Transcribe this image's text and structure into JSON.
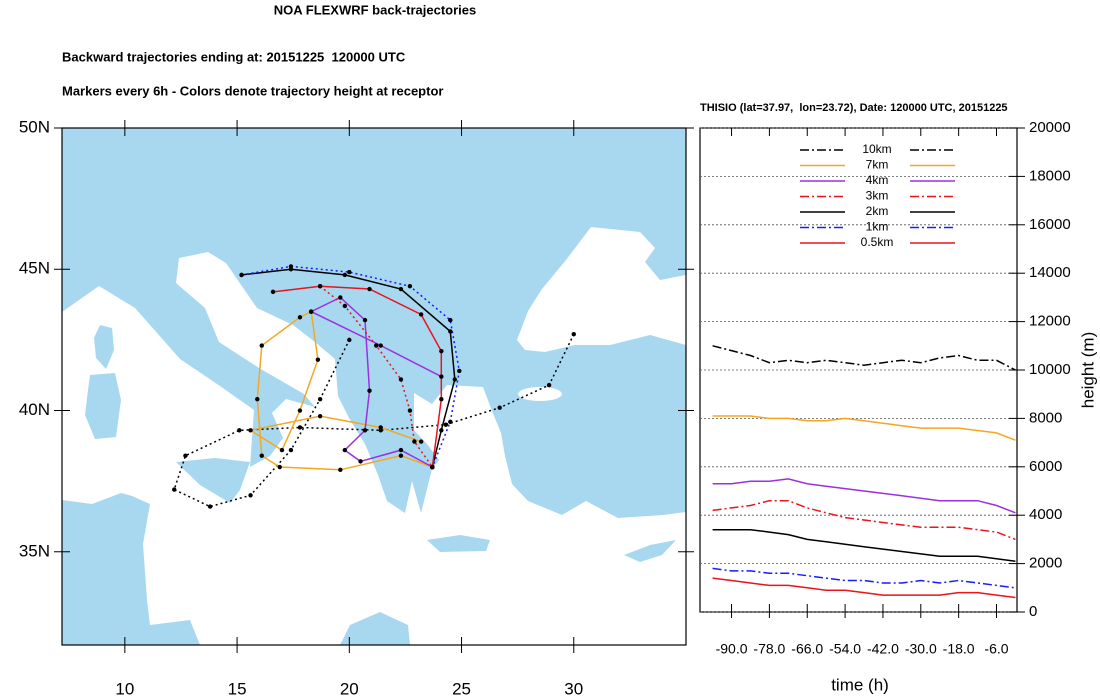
{
  "chart_data": [
    {
      "type": "map",
      "title": "NOA FLEXWRF back-trajectories",
      "subtitle": "Backward trajectories ending at: 20151225  120000 UTC",
      "annotation": "Markers every 6h - Colors denote trajectory height at receptor",
      "xlim": [
        7.2,
        35
      ],
      "ylim": [
        31.7,
        50
      ],
      "xticks": [
        10,
        15,
        20,
        25,
        30
      ],
      "yticks": [
        {
          "value": 35,
          "label": "35N"
        },
        {
          "value": 40,
          "label": "40N"
        },
        {
          "value": 45,
          "label": "45N"
        },
        {
          "value": 50,
          "label": "50N"
        }
      ],
      "land_color": "#a8d8f0",
      "sea_color": "#ffffff",
      "marker_color": "#000000",
      "series": [
        {
          "color": "#000000",
          "dash": "dotted",
          "x": [
            30.0,
            28.9,
            26.7,
            24.3,
            21.4,
            17.8,
            15.1,
            12.7,
            12.2,
            13.8,
            15.6,
            17.4,
            18.7,
            20.0
          ],
          "y": [
            42.7,
            40.9,
            40.1,
            39.5,
            39.3,
            39.4,
            39.3,
            38.4,
            37.2,
            36.6,
            37.0,
            38.6,
            40.4,
            42.5
          ]
        },
        {
          "color": "#f5a623",
          "dash": "solid",
          "x": [
            23.7,
            22.3,
            19.6,
            16.9,
            16.1,
            15.9,
            16.1,
            17.8,
            18.3,
            18.6,
            17.8,
            17.0,
            15.6,
            18.7,
            21.4,
            23.2
          ],
          "y": [
            38.0,
            38.4,
            37.9,
            38.0,
            38.4,
            40.4,
            42.3,
            43.3,
            43.5,
            41.8,
            40.0,
            38.6,
            39.3,
            39.8,
            39.4,
            38.9
          ]
        },
        {
          "color": "#9b30e0",
          "dash": "solid",
          "x": [
            24.1,
            21.4,
            18.3,
            19.6,
            20.7,
            20.9,
            20.7,
            19.8,
            20.5,
            22.3,
            23.7
          ],
          "y": [
            41.2,
            42.3,
            43.5,
            44.0,
            43.2,
            40.7,
            39.3,
            38.6,
            38.2,
            38.6,
            38.0
          ]
        },
        {
          "color": "#e8141e",
          "dash": "dotted",
          "x": [
            18.7,
            19.8,
            21.2,
            22.3,
            22.7,
            22.9,
            23.7
          ],
          "y": [
            44.4,
            43.7,
            42.3,
            41.1,
            40.0,
            38.9,
            38.0
          ]
        },
        {
          "color": "#000000",
          "dash": "solid",
          "x": [
            15.2,
            17.4,
            19.8,
            22.3,
            24.5,
            24.7,
            24.1,
            23.7
          ],
          "y": [
            44.8,
            45.0,
            44.8,
            44.3,
            42.8,
            41.1,
            39.3,
            38.0
          ]
        },
        {
          "color": "#1a1aff",
          "dash": "dotted",
          "x": [
            15.2,
            17.4,
            20.0,
            22.7,
            24.5,
            24.9,
            24.5,
            23.7
          ],
          "y": [
            44.8,
            45.1,
            44.9,
            44.4,
            43.2,
            41.4,
            39.6,
            38.0
          ]
        },
        {
          "color": "#e8141e",
          "dash": "solid",
          "x": [
            16.6,
            18.7,
            20.9,
            23.2,
            24.1,
            24.1,
            23.7
          ],
          "y": [
            44.2,
            44.4,
            44.3,
            43.4,
            42.1,
            40.4,
            38.0
          ]
        }
      ]
    },
    {
      "type": "line",
      "title": "THISIO (lat=37.97,  lon=23.72), Date: 120000 UTC, 20151225",
      "xlabel": "time (h)",
      "ylabel": "height (m)",
      "x": [
        -96,
        -90,
        -84,
        -78,
        -72,
        -66,
        -60,
        -54,
        -48,
        -42,
        -36,
        -30,
        -24,
        -18,
        -12,
        -6,
        0
      ],
      "xlim": [
        -100,
        0.5
      ],
      "ylim": [
        0,
        20000
      ],
      "xticks": [
        {
          "value": -90,
          "label": "-90.0"
        },
        {
          "value": -78,
          "label": "-78.0"
        },
        {
          "value": -66,
          "label": "-66.0"
        },
        {
          "value": -54,
          "label": "-54.0"
        },
        {
          "value": -42,
          "label": "-42.0"
        },
        {
          "value": -30,
          "label": "-30.0"
        },
        {
          "value": -18,
          "label": "-18.0"
        },
        {
          "value": -6,
          "label": "-6.0"
        }
      ],
      "yticks": [
        0,
        2000,
        4000,
        6000,
        8000,
        10000,
        12000,
        14000,
        16000,
        18000,
        20000
      ],
      "y_axis_side": "right",
      "grid": true,
      "legend": "top",
      "series": [
        {
          "name": "10km",
          "color": "#000000",
          "dash": "dashdot",
          "values": [
            11000,
            10800,
            10600,
            10300,
            10400,
            10300,
            10400,
            10300,
            10200,
            10300,
            10400,
            10300,
            10500,
            10600,
            10400,
            10400,
            10000
          ]
        },
        {
          "name": "7km",
          "color": "#f5a623",
          "dash": "solid",
          "values": [
            8100,
            8100,
            8100,
            8000,
            8000,
            7900,
            7900,
            8000,
            7900,
            7800,
            7700,
            7600,
            7600,
            7600,
            7500,
            7400,
            7100
          ]
        },
        {
          "name": "4km",
          "color": "#9b30e0",
          "dash": "solid",
          "values": [
            5300,
            5300,
            5400,
            5400,
            5500,
            5300,
            5200,
            5100,
            5000,
            4900,
            4800,
            4700,
            4600,
            4600,
            4600,
            4400,
            4100
          ]
        },
        {
          "name": "3km",
          "color": "#e8141e",
          "dash": "dashdot",
          "values": [
            4200,
            4300,
            4400,
            4600,
            4600,
            4300,
            4100,
            3900,
            3800,
            3700,
            3600,
            3500,
            3500,
            3500,
            3400,
            3300,
            3000
          ]
        },
        {
          "name": "2km",
          "color": "#000000",
          "dash": "solid",
          "values": [
            3400,
            3400,
            3400,
            3300,
            3200,
            3000,
            2900,
            2800,
            2700,
            2600,
            2500,
            2400,
            2300,
            2300,
            2300,
            2200,
            2100
          ]
        },
        {
          "name": "1km",
          "color": "#1a1aff",
          "dash": "dashdot",
          "values": [
            1800,
            1700,
            1700,
            1600,
            1600,
            1500,
            1400,
            1300,
            1300,
            1200,
            1200,
            1300,
            1200,
            1300,
            1200,
            1100,
            1000
          ]
        },
        {
          "name": "0.5km",
          "color": "#e8141e",
          "dash": "solid",
          "values": [
            1400,
            1300,
            1200,
            1100,
            1100,
            1000,
            900,
            900,
            800,
            700,
            700,
            700,
            700,
            800,
            800,
            700,
            600
          ]
        }
      ]
    }
  ]
}
